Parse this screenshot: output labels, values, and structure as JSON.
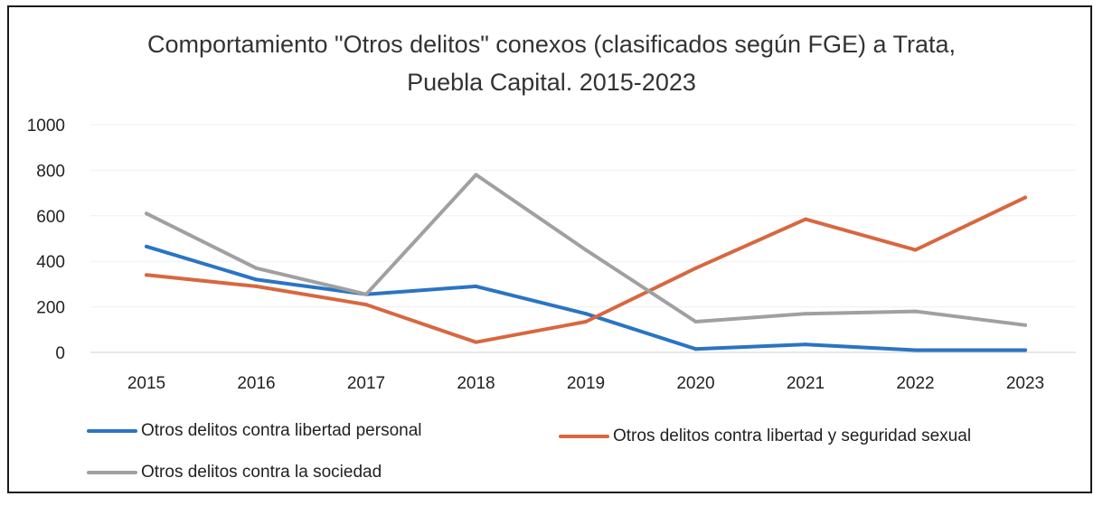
{
  "chart_data": {
    "type": "line",
    "title": "Comportamiento \"Otros delitos\" conexos (clasificados según FGE) a Trata,",
    "subtitle": "Puebla Capital. 2015-2023",
    "x": [
      "2015",
      "2016",
      "2017",
      "2018",
      "2019",
      "2020",
      "2021",
      "2022",
      "2023"
    ],
    "ylim": [
      0,
      1000
    ],
    "yticks": [
      "0",
      "200",
      "400",
      "600",
      "800",
      "1000"
    ],
    "grid": true,
    "legend_position": "bottom",
    "series": [
      {
        "name": "Otros delitos contra libertad personal",
        "color": "#2a74c4",
        "values": [
          465,
          320,
          255,
          290,
          170,
          15,
          35,
          10,
          10
        ]
      },
      {
        "name": "Otros delitos contra libertad y seguridad sexual",
        "color": "#d8673f",
        "values": [
          340,
          290,
          210,
          45,
          135,
          370,
          585,
          450,
          680
        ]
      },
      {
        "name": "Otros delitos contra la sociedad",
        "color": "#a0a0a0",
        "values": [
          610,
          370,
          255,
          780,
          450,
          135,
          170,
          180,
          120
        ]
      }
    ]
  }
}
